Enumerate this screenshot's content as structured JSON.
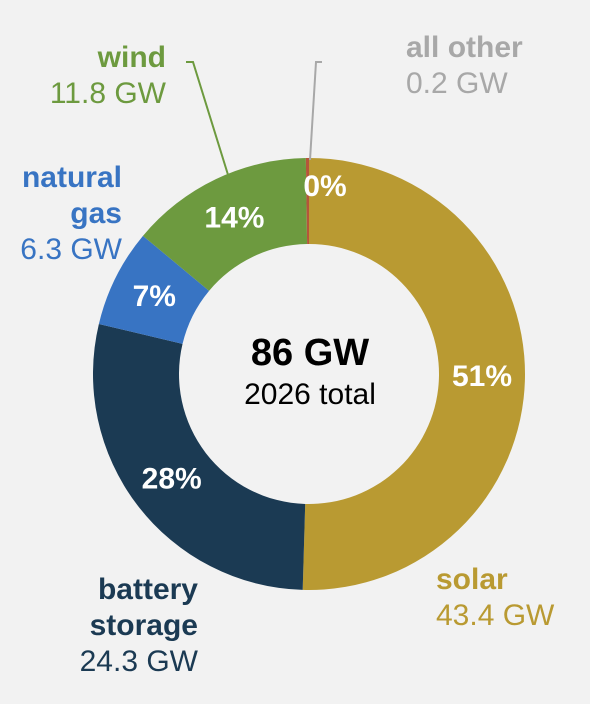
{
  "chart_data": {
    "type": "pie",
    "style": "donut",
    "center_value": "86 GW",
    "center_caption": "2026 total",
    "slices": [
      {
        "name": "solar",
        "value": 43.4,
        "value_label": "43.4 GW",
        "pct_label": "51%",
        "color": "#b99a32"
      },
      {
        "name": "battery storage",
        "name_line1": "battery",
        "name_line2": "storage",
        "value": 24.3,
        "value_label": "24.3 GW",
        "pct_label": "28%",
        "color": "#1b3a53"
      },
      {
        "name": "natural gas",
        "name_line1": "natural",
        "name_line2": "gas",
        "value": 6.3,
        "value_label": "6.3 GW",
        "pct_label": "7%",
        "color": "#3874c3"
      },
      {
        "name": "wind",
        "value": 11.8,
        "value_label": "11.8 GW",
        "pct_label": "14%",
        "color": "#6d9a3f"
      },
      {
        "name": "all other",
        "value": 0.2,
        "value_label": "0.2 GW",
        "pct_label": "0%",
        "color": "#b5563a"
      }
    ],
    "label_colors": {
      "solar": "#b99a32",
      "battery": "#1b3a53",
      "gas": "#3874c3",
      "wind": "#6d9a3f",
      "other": "#a8a8a8"
    }
  }
}
